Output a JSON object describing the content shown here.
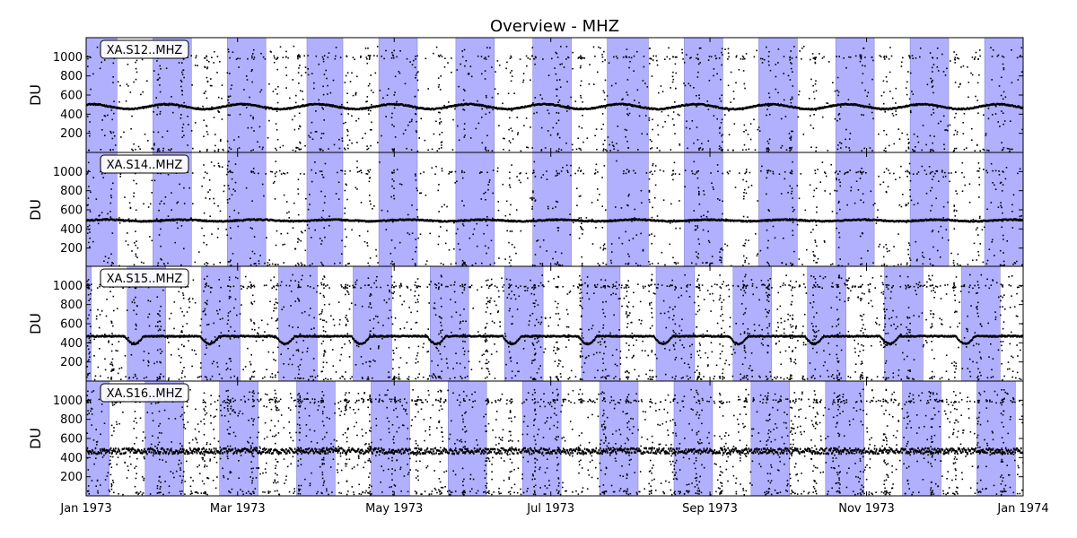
{
  "chart_data": {
    "type": "scatter",
    "title": "Overview - MHZ",
    "ylabel": "DU",
    "x_range": [
      "1973-01-01",
      "1974-01-01"
    ],
    "ylim": [
      0,
      1200
    ],
    "yticks": [
      200,
      400,
      600,
      800,
      1000
    ],
    "xticks": [
      {
        "date": "1973-01-01",
        "label": "Jan 1973"
      },
      {
        "date": "1973-03-01",
        "label": "Mar 1973"
      },
      {
        "date": "1973-05-01",
        "label": "May 1973"
      },
      {
        "date": "1973-07-01",
        "label": "Jul 1973"
      },
      {
        "date": "1973-09-01",
        "label": "Sep 1973"
      },
      {
        "date": "1973-11-01",
        "label": "Nov 1973"
      },
      {
        "date": "1974-01-01",
        "label": "Jan 1974"
      }
    ],
    "grid": false,
    "marker_color": "#000000",
    "shade_color": "#b0b0ff",
    "panels": [
      {
        "station": "XA.S12..MHZ",
        "baseline_du": 490,
        "night_shading": [
          [
            "1973-01-01",
            "1973-01-13"
          ],
          [
            "1973-01-27",
            "1973-02-11"
          ],
          [
            "1973-02-25",
            "1973-03-12"
          ],
          [
            "1973-03-28",
            "1973-04-11"
          ],
          [
            "1973-04-25",
            "1973-05-10"
          ],
          [
            "1973-05-25",
            "1973-06-09"
          ],
          [
            "1973-06-24",
            "1973-07-09"
          ],
          [
            "1973-07-23",
            "1973-08-08"
          ],
          [
            "1973-08-22",
            "1973-09-06"
          ],
          [
            "1973-09-20",
            "1973-10-05"
          ],
          [
            "1973-10-20",
            "1973-11-04"
          ],
          [
            "1973-11-18",
            "1973-12-03"
          ],
          [
            "1973-12-17",
            "1974-01-01"
          ]
        ]
      },
      {
        "station": "XA.S14..MHZ",
        "baseline_du": 500,
        "night_shading": [
          [
            "1973-01-01",
            "1973-01-13"
          ],
          [
            "1973-01-27",
            "1973-02-11"
          ],
          [
            "1973-02-25",
            "1973-03-12"
          ],
          [
            "1973-03-28",
            "1973-04-11"
          ],
          [
            "1973-04-25",
            "1973-05-10"
          ],
          [
            "1973-05-25",
            "1973-06-09"
          ],
          [
            "1973-06-24",
            "1973-07-09"
          ],
          [
            "1973-07-23",
            "1973-08-08"
          ],
          [
            "1973-08-22",
            "1973-09-06"
          ],
          [
            "1973-09-20",
            "1973-10-05"
          ],
          [
            "1973-10-20",
            "1973-11-04"
          ],
          [
            "1973-11-18",
            "1973-12-03"
          ],
          [
            "1973-12-17",
            "1974-01-01"
          ]
        ]
      },
      {
        "station": "XA.S15..MHZ",
        "baseline_du": 480,
        "night_shading": [
          [
            "1973-01-01",
            "1973-01-03"
          ],
          [
            "1973-01-17",
            "1973-02-01"
          ],
          [
            "1973-02-15",
            "1973-03-02"
          ],
          [
            "1973-03-17",
            "1973-04-01"
          ],
          [
            "1973-04-15",
            "1973-04-30"
          ],
          [
            "1973-05-15",
            "1973-05-30"
          ],
          [
            "1973-06-13",
            "1973-06-28"
          ],
          [
            "1973-07-13",
            "1973-07-28"
          ],
          [
            "1973-08-11",
            "1973-08-26"
          ],
          [
            "1973-09-10",
            "1973-09-25"
          ],
          [
            "1973-10-09",
            "1973-10-24"
          ],
          [
            "1973-11-08",
            "1973-11-23"
          ],
          [
            "1973-12-08",
            "1973-12-23"
          ]
        ]
      },
      {
        "station": "XA.S16..MHZ",
        "baseline_du": 480,
        "night_shading": [
          [
            "1973-01-01",
            "1973-01-10"
          ],
          [
            "1973-01-24",
            "1973-02-08"
          ],
          [
            "1973-02-22",
            "1973-03-09"
          ],
          [
            "1973-03-24",
            "1973-04-08"
          ],
          [
            "1973-04-22",
            "1973-05-07"
          ],
          [
            "1973-05-22",
            "1973-06-06"
          ],
          [
            "1973-06-20",
            "1973-07-05"
          ],
          [
            "1973-07-20",
            "1973-08-04"
          ],
          [
            "1973-08-18",
            "1973-09-02"
          ],
          [
            "1973-09-17",
            "1973-10-02"
          ],
          [
            "1973-10-16",
            "1973-10-31"
          ],
          [
            "1973-11-15",
            "1973-11-30"
          ],
          [
            "1973-12-14",
            "1973-12-29"
          ]
        ]
      }
    ]
  }
}
